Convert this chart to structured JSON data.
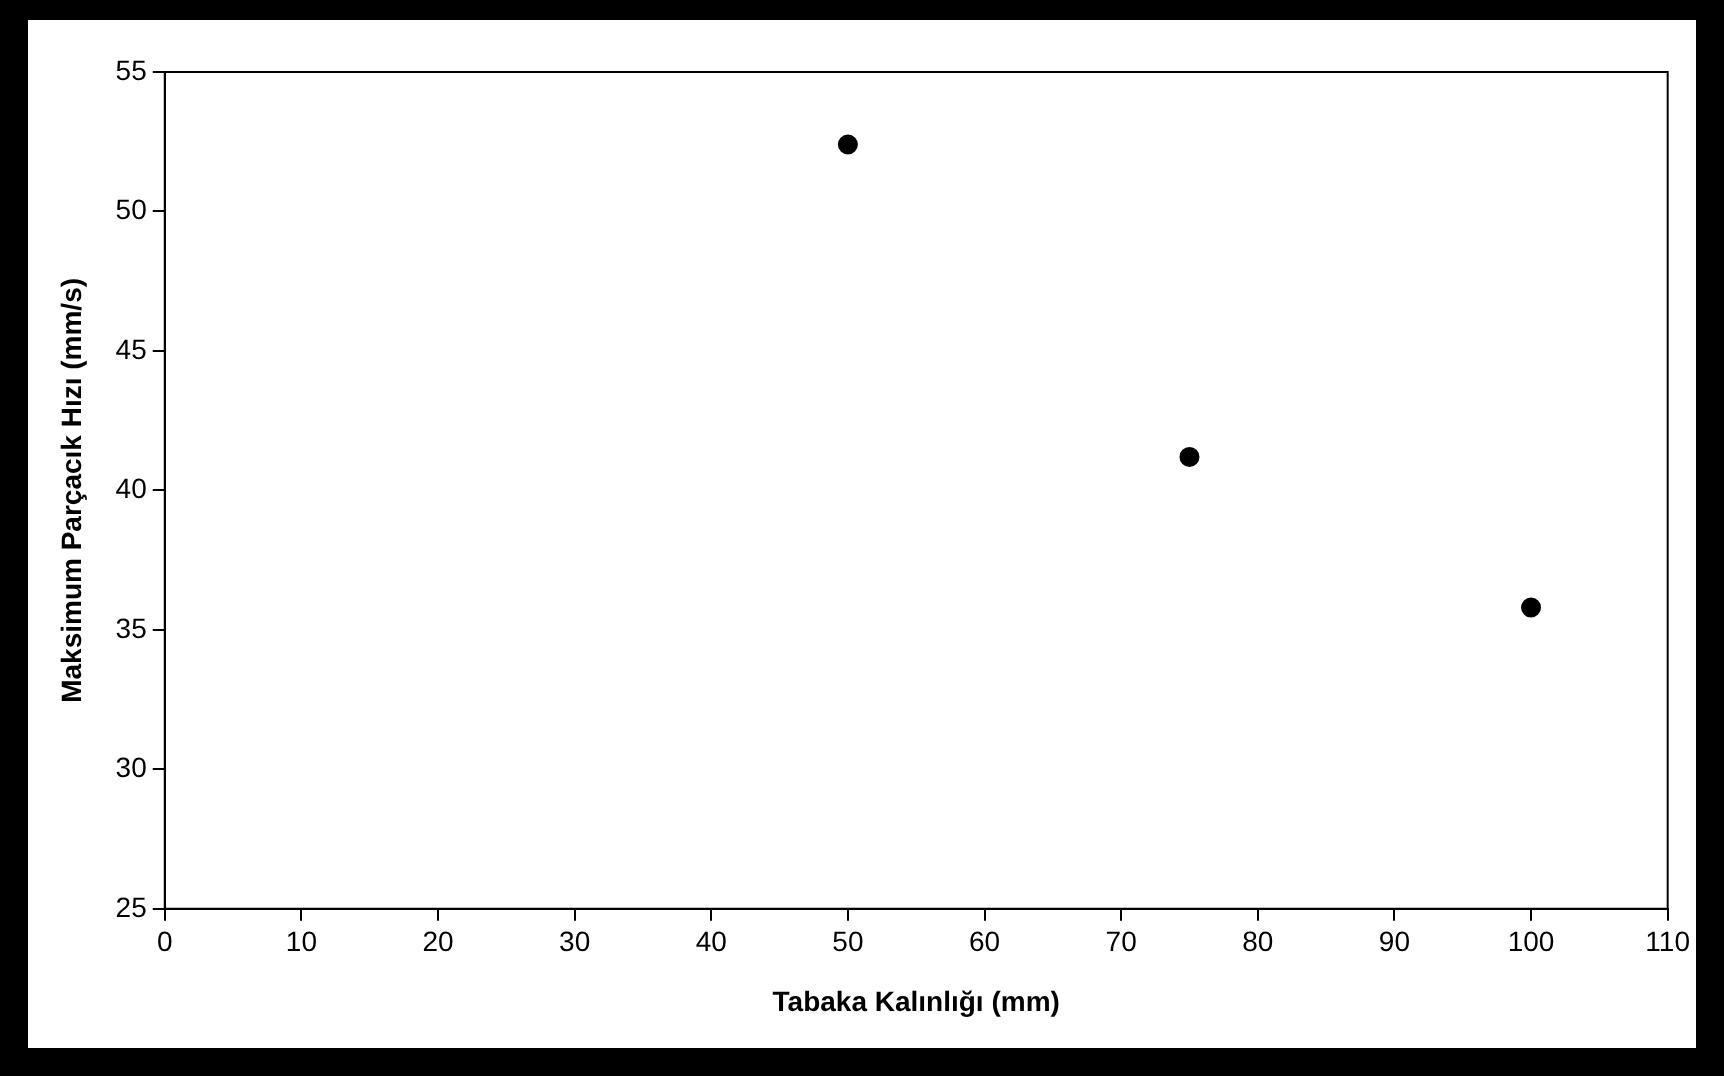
{
  "chart_data": {
    "type": "scatter",
    "xlabel": "Tabaka Kalınlığı (mm)",
    "ylabel": "Maksimum Parçacık Hızı (mm/s)",
    "x": [
      50,
      75,
      100
    ],
    "series": [
      {
        "color": "#000000",
        "values": [
          52.4,
          41.2,
          35.8
        ]
      }
    ],
    "xlim": [
      0,
      110
    ],
    "xticks": [
      0,
      10,
      20,
      30,
      40,
      50,
      60,
      70,
      80,
      90,
      100,
      110
    ],
    "ylim": [
      25,
      55
    ],
    "yticks": [
      25,
      30,
      35,
      40,
      45,
      50,
      55
    ],
    "marker": "circle",
    "legend": false,
    "grid": false
  }
}
